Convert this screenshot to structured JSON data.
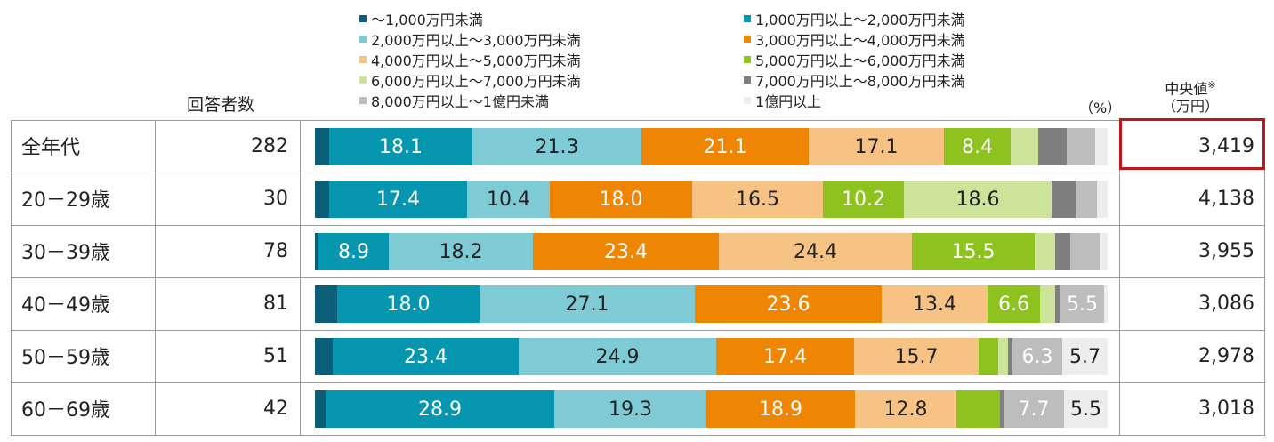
{
  "chart_data": {
    "type": "bar",
    "stacked": true,
    "orientation": "horizontal",
    "unit_label": "（%）",
    "column_headers": {
      "respondents": "回答者数",
      "median": "中央値",
      "median_mark": "※",
      "median_unit": "（万円）"
    },
    "series": [
      {
        "name": "～1,000万円未満",
        "color": "#0a5e78"
      },
      {
        "name": "1,000万円以上～2,000万円未満",
        "color": "#0796b0"
      },
      {
        "name": "2,000万円以上～3,000万円未満",
        "color": "#7ecbd6"
      },
      {
        "name": "3,000万円以上～4,000万円未満",
        "color": "#ee8604"
      },
      {
        "name": "4,000万円以上～5,000万円未満",
        "color": "#f6c385"
      },
      {
        "name": "5,000万円以上～6,000万円未満",
        "color": "#8dc21f"
      },
      {
        "name": "6,000万円以上～7,000万円未満",
        "color": "#cce39a"
      },
      {
        "name": "7,000万円以上～8,000万円未満",
        "color": "#7f7f7f"
      },
      {
        "name": "8,000万円以上～1億円未満",
        "color": "#bdbdbd"
      },
      {
        "name": "1億円以上",
        "color": "#ededed"
      }
    ],
    "rows": [
      {
        "label": "全年代",
        "respondents": "282",
        "median": "3,419",
        "highlight": true,
        "values": [
          1.8,
          18.1,
          21.3,
          21.1,
          17.1,
          8.4,
          3.5,
          3.5,
          3.6,
          1.6
        ],
        "labels": [
          "",
          "18.1",
          "21.3",
          "21.1",
          "17.1",
          "8.4",
          "",
          "",
          "",
          ""
        ]
      },
      {
        "label": "20－29歳",
        "respondents": "30",
        "median": "4,138",
        "values": [
          1.8,
          17.4,
          10.4,
          18.0,
          16.5,
          10.2,
          18.6,
          3.1,
          2.6,
          1.4
        ],
        "labels": [
          "",
          "17.4",
          "10.4",
          "18.0",
          "16.5",
          "10.2",
          "18.6",
          "",
          "",
          ""
        ]
      },
      {
        "label": "30－39歳",
        "respondents": "78",
        "median": "3,955",
        "values": [
          0.4,
          8.9,
          18.2,
          23.4,
          24.4,
          15.5,
          2.6,
          1.9,
          3.7,
          1.0
        ],
        "labels": [
          "",
          "8.9",
          "18.2",
          "23.4",
          "24.4",
          "15.5",
          "",
          "",
          "",
          ""
        ]
      },
      {
        "label": "40－49歳",
        "respondents": "81",
        "median": "3,086",
        "values": [
          2.8,
          18.0,
          27.1,
          23.6,
          13.4,
          6.6,
          1.9,
          0.6,
          5.5,
          0.5
        ],
        "labels": [
          "",
          "18.0",
          "27.1",
          "23.6",
          "13.4",
          "6.6",
          "",
          "",
          "5.5",
          ""
        ]
      },
      {
        "label": "50－59歳",
        "respondents": "51",
        "median": "2,978",
        "values": [
          2.2,
          23.4,
          24.9,
          17.4,
          15.7,
          2.4,
          1.3,
          0.5,
          6.3,
          5.7
        ],
        "labels": [
          "",
          "23.4",
          "24.9",
          "17.4",
          "15.7",
          "",
          "",
          "",
          "6.3",
          "5.7"
        ]
      },
      {
        "label": "60－69歳",
        "respondents": "42",
        "median": "3,018",
        "values": [
          1.4,
          28.9,
          19.3,
          18.9,
          12.8,
          5.6,
          0.0,
          0.4,
          7.7,
          5.5
        ],
        "labels": [
          "",
          "28.9",
          "19.3",
          "18.9",
          "12.8",
          "",
          "",
          "",
          "7.7",
          "5.5"
        ]
      }
    ]
  }
}
